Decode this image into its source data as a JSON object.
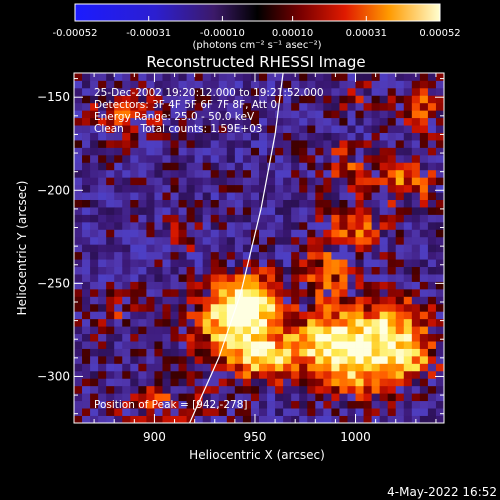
{
  "chart_data": {
    "type": "heatmap",
    "title": "Reconstructed RHESSI Image",
    "xlabel": "Heliocentric X (arcsec)",
    "ylabel": "Heliocentric Y (arcsec)",
    "xlim": [
      860,
      1044
    ],
    "ylim": [
      -325,
      -137
    ],
    "x_ticks": [
      900,
      950,
      1000
    ],
    "y_ticks": [
      -150,
      -200,
      -250,
      -300
    ],
    "colorbar": {
      "ticks": [
        "-0.00052",
        "-0.00031",
        "-0.00010",
        "0.00010",
        "0.00031",
        "0.00052"
      ],
      "range": [
        -0.00052,
        0.00052
      ],
      "unit_label": "(photons cm⁻² s⁻¹ asec⁻²)"
    },
    "annotations": {
      "time_range": "25-Dec-2002 19:20:12.000 to 19:21:52.000",
      "detectors": "Detectors: 3F 4F 5F 6F 7F 8F, Att 0",
      "energy": "Energy Range: 25.0 - 50.0 keV",
      "method": "Clean     Total counts: 1.59E+03",
      "peak": "Position of Peak = [942,-278]"
    },
    "peak": [
      942,
      -278
    ],
    "limb_points": [
      [
        917.5,
        -325
      ],
      [
        932,
        -290
      ],
      [
        943,
        -255
      ],
      [
        953,
        -210
      ],
      [
        960,
        -170
      ],
      [
        963,
        -145
      ],
      [
        964,
        -137
      ]
    ],
    "sources": [
      {
        "x": 940,
        "y": -270,
        "sx": 14,
        "sy": 14,
        "amp": 1.0
      },
      {
        "x": 948,
        "y": -258,
        "sx": 10,
        "sy": 10,
        "amp": 0.7
      },
      {
        "x": 955,
        "y": -290,
        "sx": 12,
        "sy": 9,
        "amp": 0.75
      },
      {
        "x": 1003,
        "y": -290,
        "sx": 15,
        "sy": 14,
        "amp": 0.95
      },
      {
        "x": 985,
        "y": -280,
        "sx": 12,
        "sy": 12,
        "amp": 0.7
      },
      {
        "x": 1020,
        "y": -270,
        "sx": 12,
        "sy": 11,
        "amp": 0.65
      },
      {
        "x": 1030,
        "y": -290,
        "sx": 9,
        "sy": 9,
        "amp": 0.55
      },
      {
        "x": 985,
        "y": -245,
        "sx": 11,
        "sy": 10,
        "amp": 0.55
      },
      {
        "x": 1000,
        "y": -220,
        "sx": 12,
        "sy": 10,
        "amp": 0.5
      },
      {
        "x": 1025,
        "y": -195,
        "sx": 13,
        "sy": 10,
        "amp": 0.55
      },
      {
        "x": 995,
        "y": -185,
        "sx": 9,
        "sy": 8,
        "amp": 0.45
      },
      {
        "x": 1035,
        "y": -155,
        "sx": 10,
        "sy": 10,
        "amp": 0.5
      },
      {
        "x": 1000,
        "y": -150,
        "sx": 8,
        "sy": 8,
        "amp": 0.35
      },
      {
        "x": 885,
        "y": -160,
        "sx": 14,
        "sy": 9,
        "amp": 0.45
      },
      {
        "x": 880,
        "y": -265,
        "sx": 9,
        "sy": 9,
        "amp": 0.4
      },
      {
        "x": 905,
        "y": -315,
        "sx": 18,
        "sy": 8,
        "amp": 0.4
      },
      {
        "x": 915,
        "y": -225,
        "sx": 8,
        "sy": 8,
        "amp": 0.3
      }
    ]
  },
  "footer": {
    "date": "4-May-2022 16:52"
  }
}
